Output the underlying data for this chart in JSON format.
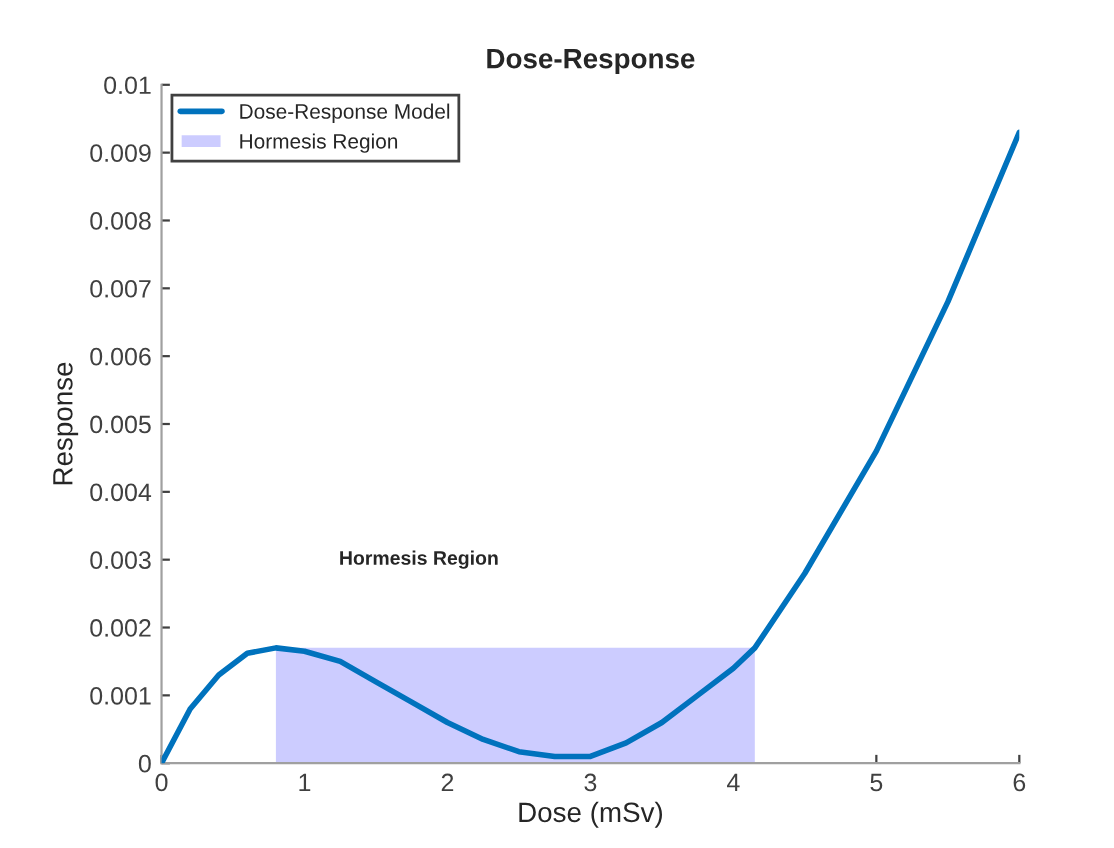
{
  "chart_data": {
    "type": "line",
    "title": "Dose-Response",
    "xlabel": "Dose (mSv)",
    "ylabel": "Response",
    "series": [
      {
        "name": "Dose-Response Model",
        "color": "#0072bd",
        "x": [
          0,
          0.2,
          0.4,
          0.6,
          0.8,
          1.0,
          1.25,
          1.5,
          1.75,
          2.0,
          2.25,
          2.5,
          2.75,
          3.0,
          3.25,
          3.5,
          3.75,
          4.0,
          4.15,
          4.5,
          5.0,
          5.5,
          6.0
        ],
        "values": [
          0,
          0.0008,
          0.0013,
          0.00162,
          0.0017,
          0.00165,
          0.0015,
          0.0012,
          0.0009,
          0.0006,
          0.00035,
          0.00017,
          0.0001,
          0.0001,
          0.0003,
          0.0006,
          0.001,
          0.0014,
          0.0017,
          0.0028,
          0.0046,
          0.0068,
          0.0093
        ]
      },
      {
        "name": "Hormesis Region",
        "type": "area",
        "color": "#ccccff",
        "x": [
          0.8,
          4.15
        ],
        "values": [
          0.0017,
          0.0017
        ]
      }
    ],
    "annotations": [
      "Hormesis Region"
    ],
    "xlim": [
      0,
      6
    ],
    "xticks": [
      0,
      1,
      2,
      3,
      4,
      5,
      6
    ],
    "ylim": [
      0,
      0.01
    ],
    "yticks": [
      0,
      0.001,
      0.002,
      0.003,
      0.004,
      0.005,
      0.006,
      0.007,
      0.008,
      0.009,
      0.01
    ],
    "grid": false,
    "legend": "top left"
  }
}
